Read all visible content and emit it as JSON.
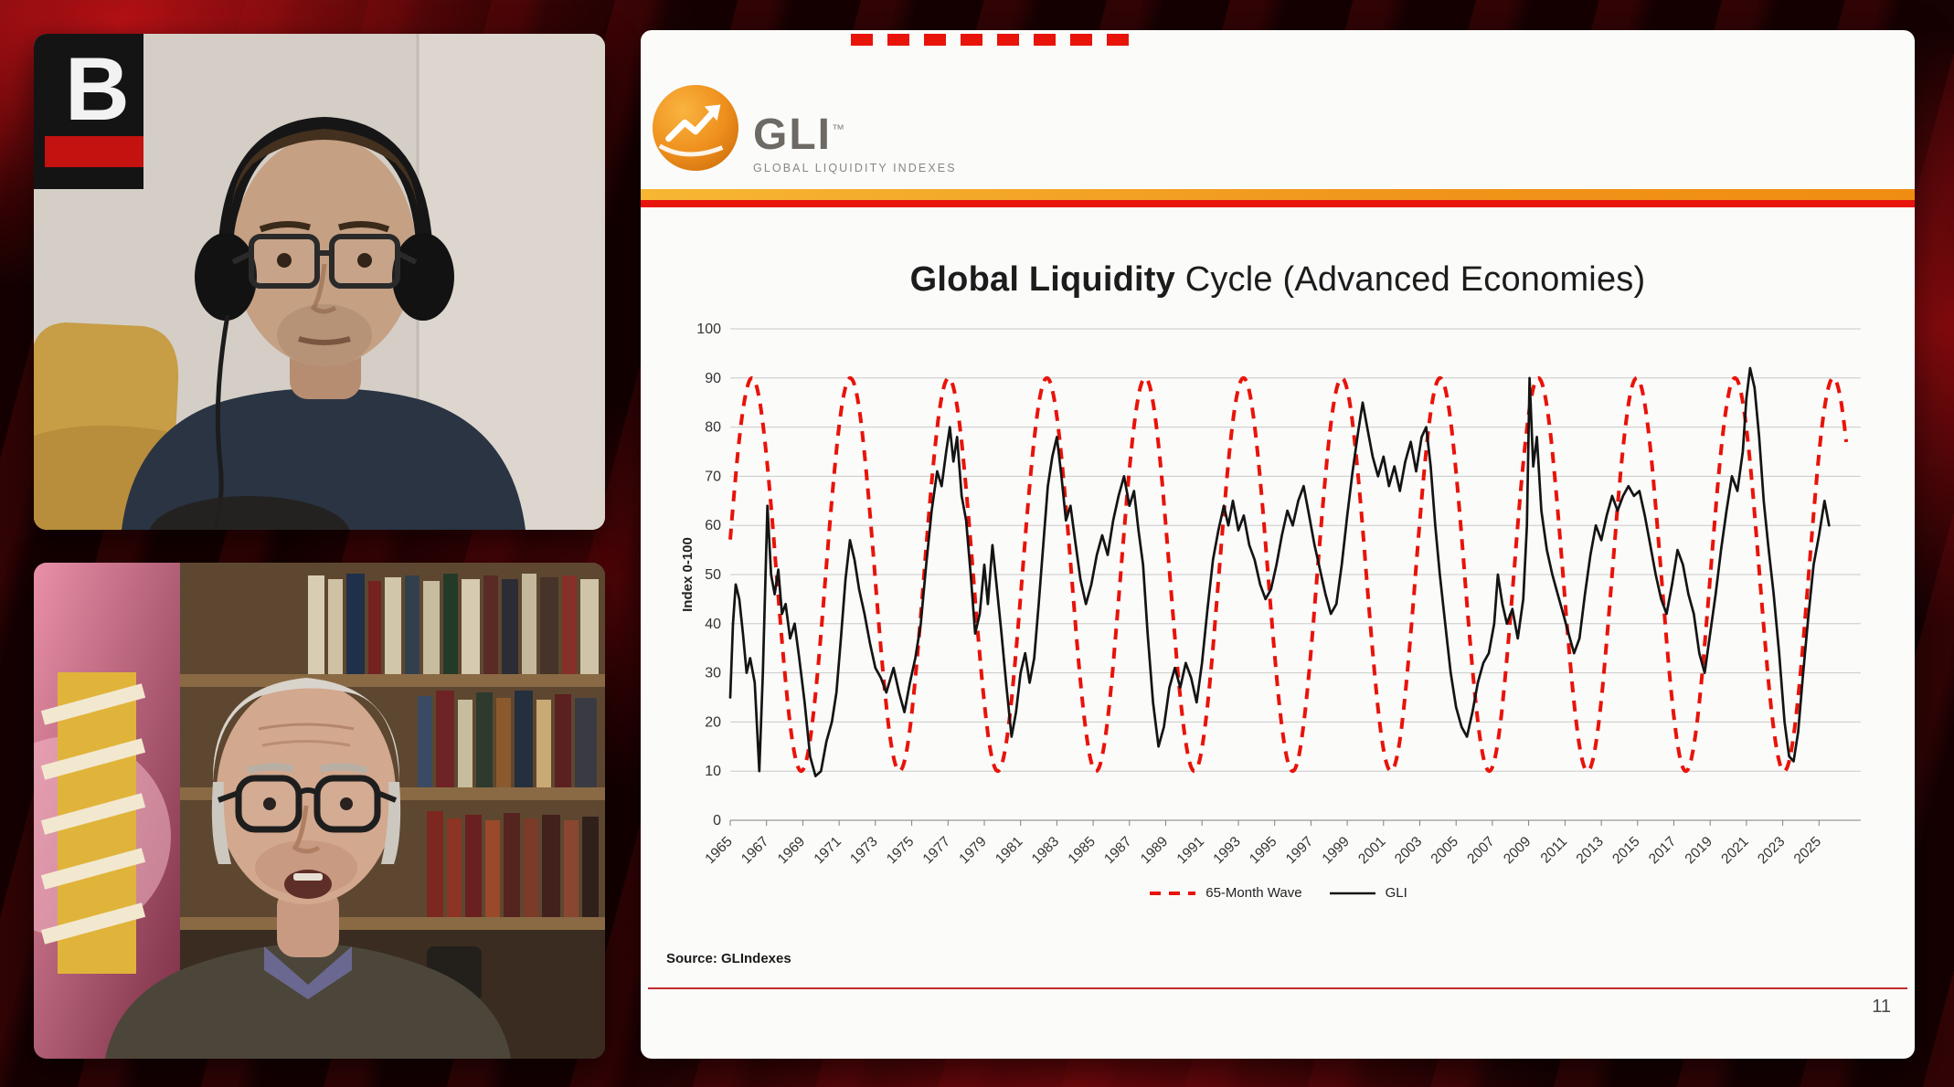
{
  "page": {
    "background_color": "#1a0203",
    "accent_red": "#e8150d",
    "accent_gold": "#f2a71b"
  },
  "webcams": {
    "top": {
      "name": "host-camera",
      "logo_letter": "B"
    },
    "bottom": {
      "name": "guest-camera"
    }
  },
  "slide": {
    "logo": {
      "text": "GLI",
      "trademark": "™",
      "subtitle": "GLOBAL LIQUIDITY INDEXES"
    },
    "title_bold": "Global Liquidity",
    "title_rest": " Cycle (Advanced Economies)",
    "source": "Source: GLIndexes",
    "page_number": "11"
  },
  "chart_data": {
    "type": "line",
    "title": "Global Liquidity Cycle (Advanced Economies)",
    "xlabel": "",
    "ylabel": "Index 0-100",
    "ylim": [
      0,
      100
    ],
    "x_domain": [
      1965,
      2027.3
    ],
    "grid": "horizontal-only",
    "legend_position": "bottom-center",
    "y_ticks": [
      0,
      10,
      20,
      30,
      40,
      50,
      60,
      70,
      80,
      90,
      100
    ],
    "x_ticks": [
      1965,
      1967,
      1969,
      1971,
      1973,
      1975,
      1977,
      1979,
      1981,
      1983,
      1985,
      1987,
      1989,
      1991,
      1993,
      1995,
      1997,
      1999,
      2001,
      2003,
      2005,
      2007,
      2009,
      2011,
      2013,
      2015,
      2017,
      2019,
      2021,
      2023,
      2025
    ],
    "series": [
      {
        "name": "65-Month Wave",
        "color": "#e81309",
        "dash": "12 9",
        "generator": {
          "kind": "sine",
          "midline": 50,
          "amplitude": 40,
          "period_years": 5.4167,
          "peak_year": 1966.2,
          "start": 1965,
          "end": 2026.5,
          "step": 0.05
        }
      },
      {
        "name": "GLI",
        "color": "#141414",
        "points": [
          [
            1965.0,
            25
          ],
          [
            1965.15,
            40
          ],
          [
            1965.3,
            48
          ],
          [
            1965.5,
            45
          ],
          [
            1965.7,
            38
          ],
          [
            1965.9,
            30
          ],
          [
            1966.1,
            33
          ],
          [
            1966.35,
            28
          ],
          [
            1966.6,
            10
          ],
          [
            1966.8,
            30
          ],
          [
            1967.05,
            64
          ],
          [
            1967.25,
            50
          ],
          [
            1967.45,
            46
          ],
          [
            1967.65,
            51
          ],
          [
            1967.85,
            42
          ],
          [
            1968.05,
            44
          ],
          [
            1968.3,
            37
          ],
          [
            1968.55,
            40
          ],
          [
            1968.8,
            33
          ],
          [
            1969.1,
            24
          ],
          [
            1969.4,
            13
          ],
          [
            1969.7,
            9
          ],
          [
            1970.0,
            10
          ],
          [
            1970.3,
            16
          ],
          [
            1970.6,
            20
          ],
          [
            1970.85,
            26
          ],
          [
            1971.1,
            37
          ],
          [
            1971.35,
            49
          ],
          [
            1971.6,
            57
          ],
          [
            1971.85,
            53
          ],
          [
            1972.1,
            47
          ],
          [
            1972.4,
            42
          ],
          [
            1972.7,
            36
          ],
          [
            1973.0,
            31
          ],
          [
            1973.3,
            29
          ],
          [
            1973.6,
            26
          ],
          [
            1974.0,
            31
          ],
          [
            1974.3,
            26
          ],
          [
            1974.6,
            22
          ],
          [
            1974.9,
            28
          ],
          [
            1975.2,
            33
          ],
          [
            1975.5,
            40
          ],
          [
            1975.8,
            52
          ],
          [
            1976.1,
            63
          ],
          [
            1976.4,
            71
          ],
          [
            1976.65,
            68
          ],
          [
            1976.9,
            75
          ],
          [
            1977.1,
            80
          ],
          [
            1977.3,
            73
          ],
          [
            1977.5,
            78
          ],
          [
            1977.75,
            66
          ],
          [
            1978.0,
            61
          ],
          [
            1978.25,
            50
          ],
          [
            1978.5,
            38
          ],
          [
            1978.75,
            42
          ],
          [
            1979.0,
            52
          ],
          [
            1979.2,
            44
          ],
          [
            1979.45,
            56
          ],
          [
            1979.7,
            47
          ],
          [
            1979.95,
            38
          ],
          [
            1980.2,
            28
          ],
          [
            1980.5,
            17
          ],
          [
            1980.75,
            22
          ],
          [
            1981.0,
            30
          ],
          [
            1981.25,
            34
          ],
          [
            1981.5,
            28
          ],
          [
            1981.75,
            33
          ],
          [
            1982.0,
            44
          ],
          [
            1982.25,
            56
          ],
          [
            1982.5,
            68
          ],
          [
            1982.75,
            74
          ],
          [
            1983.0,
            78
          ],
          [
            1983.25,
            70
          ],
          [
            1983.5,
            61
          ],
          [
            1983.75,
            64
          ],
          [
            1984.0,
            57
          ],
          [
            1984.3,
            49
          ],
          [
            1984.6,
            44
          ],
          [
            1984.9,
            48
          ],
          [
            1985.2,
            54
          ],
          [
            1985.5,
            58
          ],
          [
            1985.8,
            54
          ],
          [
            1986.1,
            61
          ],
          [
            1986.4,
            66
          ],
          [
            1986.7,
            70
          ],
          [
            1987.0,
            64
          ],
          [
            1987.25,
            67
          ],
          [
            1987.5,
            59
          ],
          [
            1987.75,
            52
          ],
          [
            1988.0,
            38
          ],
          [
            1988.3,
            24
          ],
          [
            1988.6,
            15
          ],
          [
            1988.9,
            19
          ],
          [
            1989.2,
            27
          ],
          [
            1989.5,
            31
          ],
          [
            1989.8,
            27
          ],
          [
            1990.1,
            32
          ],
          [
            1990.4,
            29
          ],
          [
            1990.7,
            24
          ],
          [
            1991.0,
            32
          ],
          [
            1991.3,
            43
          ],
          [
            1991.6,
            53
          ],
          [
            1991.9,
            59
          ],
          [
            1992.2,
            64
          ],
          [
            1992.45,
            60
          ],
          [
            1992.7,
            65
          ],
          [
            1993.0,
            59
          ],
          [
            1993.3,
            62
          ],
          [
            1993.6,
            56
          ],
          [
            1993.9,
            53
          ],
          [
            1994.2,
            48
          ],
          [
            1994.5,
            45
          ],
          [
            1994.8,
            47
          ],
          [
            1995.1,
            52
          ],
          [
            1995.4,
            58
          ],
          [
            1995.7,
            63
          ],
          [
            1996.0,
            60
          ],
          [
            1996.3,
            65
          ],
          [
            1996.6,
            68
          ],
          [
            1996.9,
            62
          ],
          [
            1997.2,
            56
          ],
          [
            1997.5,
            51
          ],
          [
            1997.8,
            46
          ],
          [
            1998.1,
            42
          ],
          [
            1998.4,
            44
          ],
          [
            1998.7,
            52
          ],
          [
            1999.0,
            62
          ],
          [
            1999.3,
            71
          ],
          [
            1999.6,
            79
          ],
          [
            1999.85,
            85
          ],
          [
            2000.1,
            80
          ],
          [
            2000.4,
            74
          ],
          [
            2000.7,
            70
          ],
          [
            2001.0,
            74
          ],
          [
            2001.3,
            68
          ],
          [
            2001.6,
            72
          ],
          [
            2001.9,
            67
          ],
          [
            2002.2,
            73
          ],
          [
            2002.5,
            77
          ],
          [
            2002.8,
            71
          ],
          [
            2003.1,
            78
          ],
          [
            2003.35,
            80
          ],
          [
            2003.6,
            72
          ],
          [
            2003.85,
            60
          ],
          [
            2004.1,
            50
          ],
          [
            2004.4,
            40
          ],
          [
            2004.7,
            30
          ],
          [
            2005.0,
            23
          ],
          [
            2005.3,
            19
          ],
          [
            2005.6,
            17
          ],
          [
            2005.9,
            22
          ],
          [
            2006.2,
            28
          ],
          [
            2006.5,
            32
          ],
          [
            2006.8,
            34
          ],
          [
            2007.1,
            40
          ],
          [
            2007.3,
            50
          ],
          [
            2007.55,
            44
          ],
          [
            2007.8,
            40
          ],
          [
            2008.1,
            43
          ],
          [
            2008.4,
            37
          ],
          [
            2008.7,
            45
          ],
          [
            2008.9,
            60
          ],
          [
            2009.05,
            90
          ],
          [
            2009.25,
            72
          ],
          [
            2009.45,
            78
          ],
          [
            2009.7,
            63
          ],
          [
            2010.0,
            55
          ],
          [
            2010.3,
            50
          ],
          [
            2010.6,
            46
          ],
          [
            2010.9,
            42
          ],
          [
            2011.2,
            38
          ],
          [
            2011.5,
            34
          ],
          [
            2011.8,
            37
          ],
          [
            2012.1,
            46
          ],
          [
            2012.4,
            54
          ],
          [
            2012.7,
            60
          ],
          [
            2013.0,
            57
          ],
          [
            2013.3,
            62
          ],
          [
            2013.6,
            66
          ],
          [
            2013.9,
            63
          ],
          [
            2014.2,
            66
          ],
          [
            2014.5,
            68
          ],
          [
            2014.8,
            66
          ],
          [
            2015.1,
            67
          ],
          [
            2015.4,
            62
          ],
          [
            2015.7,
            56
          ],
          [
            2016.0,
            50
          ],
          [
            2016.3,
            45
          ],
          [
            2016.6,
            42
          ],
          [
            2016.9,
            48
          ],
          [
            2017.2,
            55
          ],
          [
            2017.5,
            52
          ],
          [
            2017.8,
            46
          ],
          [
            2018.1,
            42
          ],
          [
            2018.4,
            34
          ],
          [
            2018.7,
            30
          ],
          [
            2019.0,
            38
          ],
          [
            2019.3,
            46
          ],
          [
            2019.6,
            55
          ],
          [
            2019.9,
            63
          ],
          [
            2020.2,
            70
          ],
          [
            2020.5,
            67
          ],
          [
            2020.8,
            75
          ],
          [
            2021.0,
            86
          ],
          [
            2021.2,
            92
          ],
          [
            2021.45,
            88
          ],
          [
            2021.7,
            78
          ],
          [
            2021.95,
            65
          ],
          [
            2022.2,
            56
          ],
          [
            2022.5,
            46
          ],
          [
            2022.8,
            34
          ],
          [
            2023.1,
            20
          ],
          [
            2023.35,
            13
          ],
          [
            2023.6,
            12
          ],
          [
            2023.85,
            18
          ],
          [
            2024.1,
            29
          ],
          [
            2024.4,
            41
          ],
          [
            2024.7,
            52
          ],
          [
            2025.0,
            58
          ],
          [
            2025.3,
            65
          ],
          [
            2025.55,
            60
          ]
        ]
      }
    ]
  }
}
